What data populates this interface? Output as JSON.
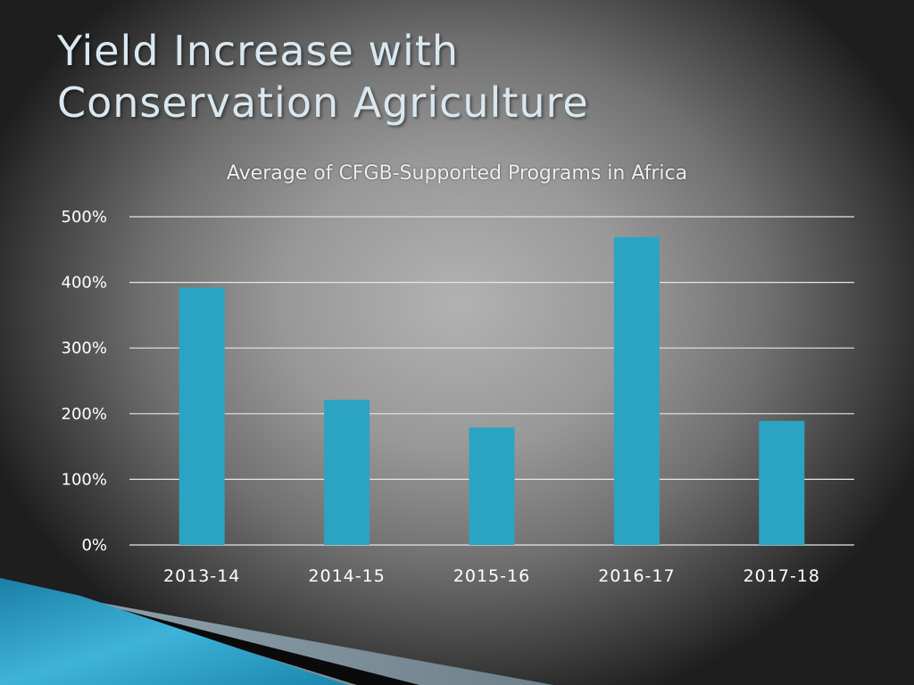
{
  "slide": {
    "title_line1": "Yield Increase with",
    "title_line2": "Conservation Agriculture"
  },
  "colors": {
    "bar": "#2ba4c4",
    "gridline": "#e6e6e6",
    "title": "#d9e8f0"
  },
  "chart_data": {
    "type": "bar",
    "title": "Average of CFGB-Supported Programs in Africa",
    "categories": [
      "2013-14",
      "2014-15",
      "2015-16",
      "2016-17",
      "2017-18"
    ],
    "values": [
      392,
      221,
      179,
      469,
      189
    ],
    "value_unit": "%",
    "ylim": [
      0,
      500
    ],
    "yticks": [
      0,
      100,
      200,
      300,
      400,
      500
    ],
    "ytick_labels": [
      "0%",
      "100%",
      "200%",
      "300%",
      "400%",
      "500%"
    ],
    "xlabel": "",
    "ylabel": "",
    "grid": true,
    "legend": "none"
  }
}
